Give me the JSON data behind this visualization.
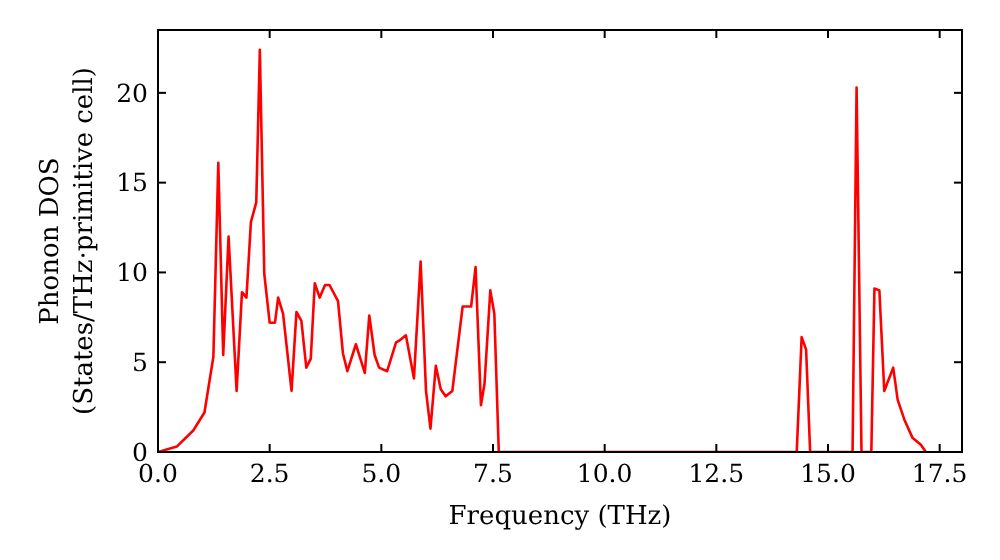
{
  "chart_data": {
    "type": "line",
    "xlabel": "Frequency (THz)",
    "ylabel": "Phonon DOS\n(States/THz·primitive cell)",
    "xlim": [
      0,
      18
    ],
    "ylim": [
      0,
      23.5
    ],
    "xticks": [
      {
        "value": 0,
        "label": "0.0"
      },
      {
        "value": 2.5,
        "label": "2.5"
      },
      {
        "value": 5,
        "label": "5.0"
      },
      {
        "value": 7.5,
        "label": "7.5"
      },
      {
        "value": 10,
        "label": "10.0"
      },
      {
        "value": 12.5,
        "label": "12.5"
      },
      {
        "value": 15,
        "label": "15.0"
      },
      {
        "value": 17.5,
        "label": "17.5"
      }
    ],
    "yticks": [
      0,
      5,
      10,
      15,
      20
    ],
    "grid": false,
    "marker": "none",
    "line_style": "solid",
    "series": [
      {
        "color": "#ff0000",
        "x": [
          0,
          0.42,
          0.79,
          1.04,
          1.24,
          1.35,
          1.46,
          1.58,
          1.76,
          1.88,
          1.98,
          2.08,
          2.2,
          2.28,
          2.38,
          2.5,
          2.62,
          2.69,
          2.8,
          2.99,
          3.1,
          3.21,
          3.32,
          3.42,
          3.51,
          3.62,
          3.74,
          3.84,
          4.03,
          4.14,
          4.24,
          4.43,
          4.63,
          4.73,
          4.85,
          4.95,
          5.13,
          5.33,
          5.4,
          5.55,
          5.73,
          5.88,
          6.0,
          6.1,
          6.22,
          6.33,
          6.44,
          6.59,
          6.82,
          7.01,
          7.11,
          7.23,
          7.31,
          7.44,
          7.53,
          7.63,
          14.3,
          14.41,
          14.51,
          14.6,
          15.55,
          15.64,
          15.75,
          15.97,
          16.04,
          16.15,
          16.26,
          16.46,
          16.56,
          16.71,
          16.89,
          17.08,
          17.19
        ],
        "values": [
          0,
          0.3,
          1.2,
          2.2,
          5.3,
          16.1,
          5.4,
          12,
          3.4,
          8.9,
          8.6,
          12.8,
          13.9,
          22.4,
          9.9,
          7.2,
          7.2,
          8.6,
          7.7,
          3.4,
          7.8,
          7.3,
          4.7,
          5.2,
          9.4,
          8.6,
          9.3,
          9.3,
          8.4,
          5.5,
          4.5,
          6,
          4.4,
          7.6,
          5.4,
          4.7,
          4.5,
          6.1,
          6.2,
          6.5,
          4.1,
          10.6,
          3.4,
          1.3,
          4.8,
          3.5,
          3.1,
          3.4,
          8.1,
          8.1,
          10.3,
          2.6,
          3.8,
          9,
          7.7,
          0,
          0,
          6.4,
          5.7,
          0,
          0,
          20.3,
          0,
          0,
          9.1,
          9,
          3.4,
          4.7,
          2.9,
          1.8,
          0.8,
          0.4,
          0
        ]
      }
    ]
  }
}
